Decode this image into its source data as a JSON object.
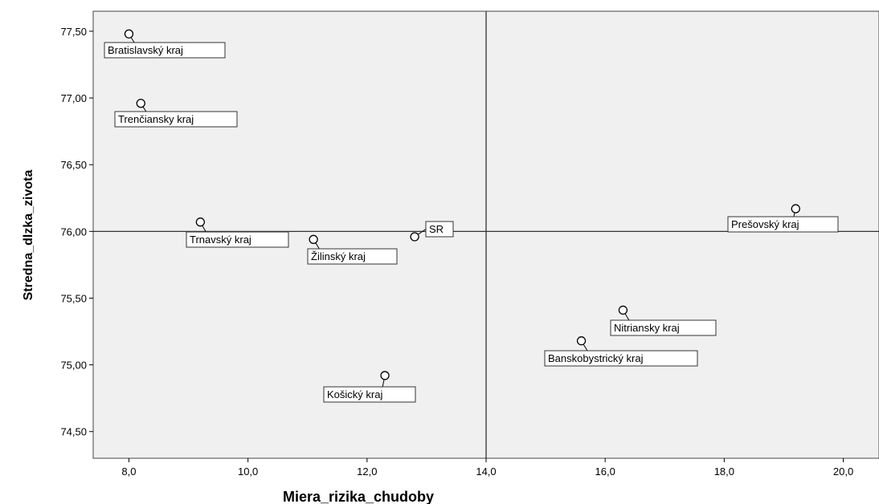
{
  "chart_data": {
    "type": "scatter",
    "xlabel": "Miera_rizika_chudoby",
    "ylabel": "Stredna_dlzka_zivota",
    "xlim": [
      7.4,
      20.6
    ],
    "ylim": [
      74.3,
      77.65
    ],
    "x_ticks": [
      8,
      10,
      12,
      14,
      16,
      18,
      20
    ],
    "x_tick_labels": [
      "8,0",
      "10,0",
      "12,0",
      "14,0",
      "16,0",
      "18,0",
      "20,0"
    ],
    "y_ticks": [
      74.5,
      75.0,
      75.5,
      76.0,
      76.5,
      77.0,
      77.5
    ],
    "y_tick_labels": [
      "74,50",
      "75,00",
      "75,50",
      "76,00",
      "76,50",
      "77,00",
      "77,50"
    ],
    "reference_lines": {
      "x": 14.0,
      "y": 76.0
    },
    "background_color": "#f0f0f0",
    "points": [
      {
        "label": "Bratislavský kraj",
        "x": 8.0,
        "y": 77.48
      },
      {
        "label": "Trenčiansky kraj",
        "x": 8.2,
        "y": 76.96
      },
      {
        "label": "Trnavský kraj",
        "x": 9.2,
        "y": 76.07
      },
      {
        "label": "Žilinský kraj",
        "x": 11.1,
        "y": 75.94
      },
      {
        "label": "SR",
        "x": 12.8,
        "y": 75.96
      },
      {
        "label": "Košický kraj",
        "x": 12.3,
        "y": 74.92
      },
      {
        "label": "Nitriansky kraj",
        "x": 16.3,
        "y": 75.41
      },
      {
        "label": "Banskobystrický kraj",
        "x": 15.6,
        "y": 75.18
      },
      {
        "label": "Prešovský kraj",
        "x": 19.2,
        "y": 76.17
      }
    ]
  }
}
